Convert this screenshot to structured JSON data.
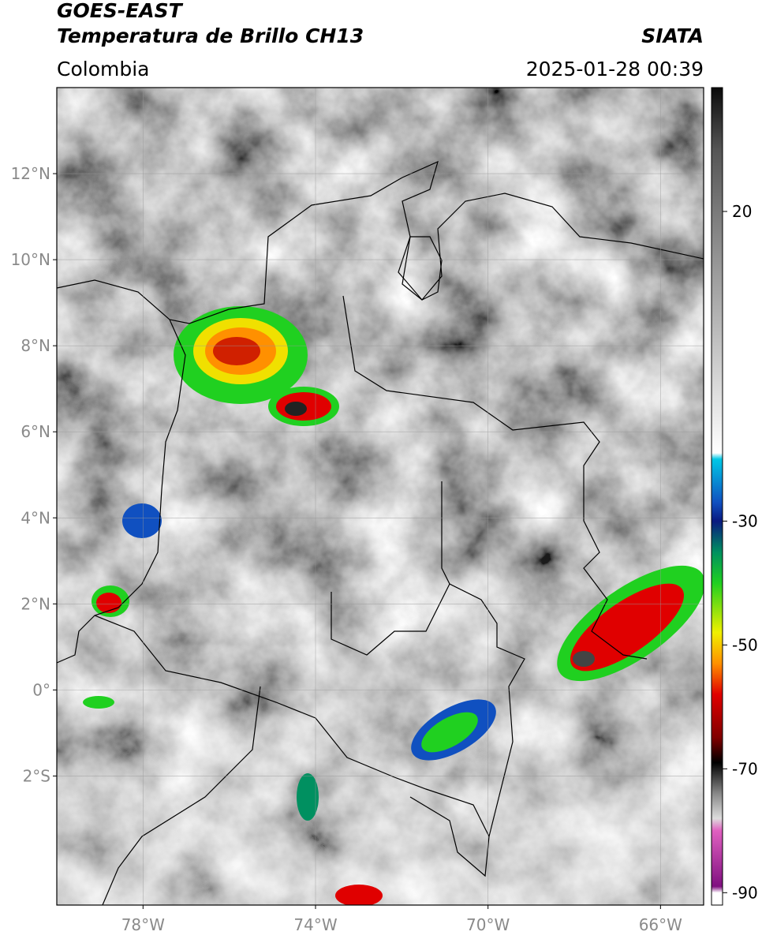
{
  "header": {
    "title": "GOES-EAST",
    "subtitle": "Temperatura de Brillo CH13",
    "source": "SIATA",
    "region": "Colombia",
    "datetime": "2025-01-28 00:39"
  },
  "map": {
    "xlim": [
      -80,
      -65
    ],
    "ylim": [
      -5,
      14
    ],
    "grid": true,
    "xticks": [
      {
        "value": -78,
        "label": "78°W"
      },
      {
        "value": -74,
        "label": "74°W"
      },
      {
        "value": -70,
        "label": "70°W"
      },
      {
        "value": -66,
        "label": "66°W"
      }
    ],
    "yticks": [
      {
        "value": 12,
        "label": "12°N"
      },
      {
        "value": 10,
        "label": "10°N"
      },
      {
        "value": 8,
        "label": "8°N"
      },
      {
        "value": 6,
        "label": "6°N"
      },
      {
        "value": 4,
        "label": "4°N"
      },
      {
        "value": 2,
        "label": "2°N"
      },
      {
        "value": 0,
        "label": "0°"
      },
      {
        "value": -2,
        "label": "2°S"
      }
    ]
  },
  "colorbar": {
    "lim": [
      -92,
      40
    ],
    "ticks": [
      20,
      -30,
      -50,
      -70,
      -90
    ],
    "colors": [
      {
        "value": 40,
        "color": "#0a0a0a"
      },
      {
        "value": 30,
        "color": "#555555"
      },
      {
        "value": 20,
        "color": "#7a7a7a"
      },
      {
        "value": 0,
        "color": "#bdbdbd"
      },
      {
        "value": -19,
        "color": "#ffffff"
      },
      {
        "value": -20,
        "color": "#00c8e6"
      },
      {
        "value": -27,
        "color": "#1050c0"
      },
      {
        "value": -30,
        "color": "#0a1a80"
      },
      {
        "value": -35,
        "color": "#009060"
      },
      {
        "value": -40,
        "color": "#20d020"
      },
      {
        "value": -48,
        "color": "#f0f000"
      },
      {
        "value": -53,
        "color": "#ff9000"
      },
      {
        "value": -58,
        "color": "#e00000"
      },
      {
        "value": -65,
        "color": "#800000"
      },
      {
        "value": -69,
        "color": "#000000"
      },
      {
        "value": -74,
        "color": "#888888"
      },
      {
        "value": -78,
        "color": "#dddddd"
      },
      {
        "value": -80,
        "color": "#e060c0"
      },
      {
        "value": -89,
        "color": "#801080"
      },
      {
        "value": -90,
        "color": "#ffffff"
      }
    ]
  }
}
